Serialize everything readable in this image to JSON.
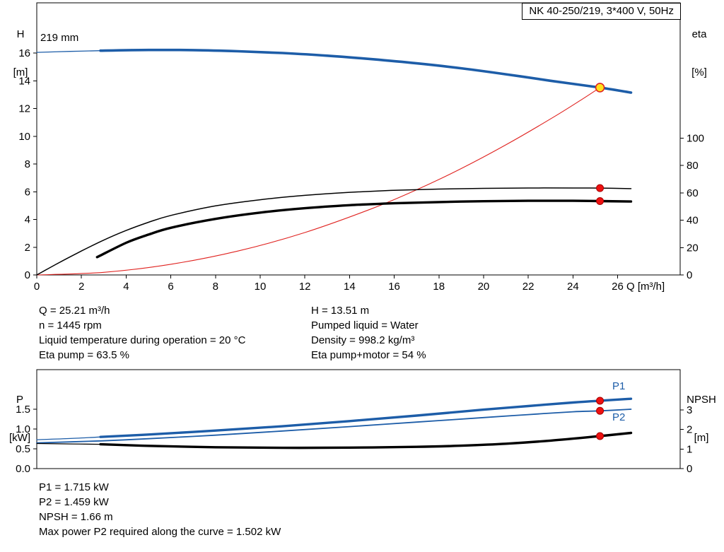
{
  "info_block": {
    "left": [
      "Q = 25.21 m³/h",
      "n = 1445 rpm",
      "Liquid temperature during operation = 20 °C",
      "Eta pump = 63.5 %"
    ],
    "right": [
      "H = 13.51 m",
      "Pumped liquid = Water",
      "Density = 998.2 kg/m³",
      "Eta pump+motor = 54 %"
    ]
  },
  "result_block": {
    "lines": [
      "P1 = 1.715 kW",
      "P2 = 1.459 kW",
      "NPSH = 1.66 m",
      "Max power P2 required along the curve = 1.502 kW"
    ]
  },
  "chart_data": [
    {
      "type": "line",
      "title": "NK 40-250/219, 3*400 V, 50Hz",
      "impeller_label": "219 mm",
      "x_axis": {
        "label": "Q [m³/h]",
        "lim": [
          0,
          28.8
        ],
        "ticks": [
          0,
          2,
          4,
          6,
          8,
          10,
          12,
          14,
          16,
          18,
          20,
          22,
          24,
          26
        ]
      },
      "y_left": {
        "symbol": "H",
        "unit": "[m]",
        "lim": [
          0,
          19.62
        ],
        "ticks": [
          0,
          2,
          4,
          6,
          8,
          10,
          12,
          14,
          16
        ]
      },
      "y_right": {
        "symbol": "eta",
        "unit": "[%]",
        "lim": [
          0,
          199
        ],
        "ticks": [
          0,
          20,
          40,
          60,
          80,
          100
        ]
      },
      "series": [
        {
          "name": "head-curve-lead",
          "axis": "left",
          "color": "#1d5da8",
          "width": 1.3,
          "points": [
            [
              0,
              16.05
            ],
            [
              1.5,
              16.12
            ],
            [
              2.85,
              16.17
            ]
          ]
        },
        {
          "name": "head-curve",
          "axis": "left",
          "color": "#1d5da8",
          "width": 3.6,
          "points": [
            [
              2.85,
              16.17
            ],
            [
              5,
              16.22
            ],
            [
              7,
              16.21
            ],
            [
              9,
              16.13
            ],
            [
              11,
              16.0
            ],
            [
              13,
              15.81
            ],
            [
              15,
              15.56
            ],
            [
              17,
              15.26
            ],
            [
              19,
              14.9
            ],
            [
              21,
              14.47
            ],
            [
              23,
              14.0
            ],
            [
              25.21,
              13.51
            ],
            [
              26.6,
              13.15
            ]
          ]
        },
        {
          "name": "system-curve",
          "axis": "left",
          "color": "#e02320",
          "width": 1.1,
          "points": [
            [
              0,
              0
            ],
            [
              3,
              0.19
            ],
            [
              6,
              0.77
            ],
            [
              9,
              1.72
            ],
            [
              12,
              3.06
            ],
            [
              15,
              4.78
            ],
            [
              17,
              6.14
            ],
            [
              19,
              7.67
            ],
            [
              21,
              9.38
            ],
            [
              23,
              11.25
            ],
            [
              24.3,
              12.55
            ],
            [
              25.21,
              13.51
            ]
          ]
        },
        {
          "name": "eta-pump-curve",
          "axis": "right",
          "color": "#000000",
          "width": 1.5,
          "points": [
            [
              0,
              0
            ],
            [
              1,
              9
            ],
            [
              2,
              17.5
            ],
            [
              3,
              25.5
            ],
            [
              4,
              32.5
            ],
            [
              5,
              38.5
            ],
            [
              6,
              43.5
            ],
            [
              8,
              50.5
            ],
            [
              10,
              55
            ],
            [
              12,
              58.2
            ],
            [
              14,
              60.4
            ],
            [
              16,
              61.9
            ],
            [
              18,
              62.8
            ],
            [
              20,
              63.3
            ],
            [
              22,
              63.6
            ],
            [
              24,
              63.6
            ],
            [
              25.21,
              63.5
            ],
            [
              26.6,
              63.1
            ]
          ]
        },
        {
          "name": "eta-pump-motor-curve",
          "axis": "right",
          "color": "#000000",
          "width": 3.4,
          "points": [
            [
              2.7,
              13
            ],
            [
              4,
              23.5
            ],
            [
              5,
              29.5
            ],
            [
              6,
              34.5
            ],
            [
              8,
              41
            ],
            [
              10,
              45.6
            ],
            [
              12,
              48.8
            ],
            [
              14,
              51
            ],
            [
              16,
              52.4
            ],
            [
              18,
              53.3
            ],
            [
              20,
              53.9
            ],
            [
              22,
              54.2
            ],
            [
              24,
              54.2
            ],
            [
              25.21,
              54
            ],
            [
              26.6,
              53.7
            ]
          ]
        }
      ],
      "markers": [
        {
          "name": "duty-point",
          "x": 25.21,
          "axis": "left",
          "y": 13.51,
          "r": 6,
          "fill": "#ffe11c",
          "stroke": "#e02320",
          "sw": 1.6
        },
        {
          "name": "eta-pump-point",
          "x": 25.21,
          "axis": "right",
          "y": 63.5,
          "r": 5,
          "fill": "#ee1111",
          "stroke": "#a50000",
          "sw": 1
        },
        {
          "name": "eta-pump-motor-point",
          "x": 25.21,
          "axis": "right",
          "y": 54,
          "r": 5,
          "fill": "#ee1111",
          "stroke": "#a50000",
          "sw": 1
        }
      ]
    },
    {
      "type": "line",
      "x_axis": {
        "label": "",
        "lim": [
          0,
          28.8
        ],
        "ticks": []
      },
      "y_left": {
        "symbol": "P",
        "unit": "[kW]",
        "lim": [
          0,
          2.5
        ],
        "ticks": [
          0,
          0.5,
          1,
          1.5
        ],
        "tick_labels": [
          "0.0",
          "0.5",
          "1.0",
          "1.5"
        ]
      },
      "y_right": {
        "symbol": "NPSH",
        "unit": "[m]",
        "lim": [
          0,
          5.05
        ],
        "ticks": [
          0,
          1,
          2,
          3
        ]
      },
      "series_labels": {
        "p1": "P1",
        "p2": "P2"
      },
      "series": [
        {
          "name": "p1-curve-lead",
          "axis": "left",
          "color": "#1d5da8",
          "width": 1.3,
          "points": [
            [
              0,
              0.73
            ],
            [
              1.5,
              0.76
            ],
            [
              2.85,
              0.8
            ]
          ]
        },
        {
          "name": "p1-curve",
          "axis": "left",
          "color": "#1d5da8",
          "width": 3.4,
          "points": [
            [
              2.85,
              0.8
            ],
            [
              5,
              0.86
            ],
            [
              8,
              0.96
            ],
            [
              11,
              1.07
            ],
            [
              14,
              1.2
            ],
            [
              17,
              1.34
            ],
            [
              20,
              1.49
            ],
            [
              22,
              1.58
            ],
            [
              24,
              1.67
            ],
            [
              25.21,
              1.715
            ],
            [
              26.6,
              1.765
            ]
          ]
        },
        {
          "name": "p2-curve",
          "axis": "left",
          "color": "#1d5da8",
          "width": 1.8,
          "points": [
            [
              0,
              0.65
            ],
            [
              2.85,
              0.7
            ],
            [
              5,
              0.755
            ],
            [
              8,
              0.845
            ],
            [
              11,
              0.95
            ],
            [
              14,
              1.06
            ],
            [
              17,
              1.175
            ],
            [
              20,
              1.29
            ],
            [
              22,
              1.365
            ],
            [
              24,
              1.435
            ],
            [
              25.21,
              1.459
            ],
            [
              26.6,
              1.5
            ]
          ]
        },
        {
          "name": "npsh-curve-lead",
          "axis": "right",
          "color": "#000000",
          "width": 1.3,
          "points": [
            [
              0,
              1.28
            ],
            [
              1.5,
              1.26
            ],
            [
              2.85,
              1.24
            ]
          ]
        },
        {
          "name": "npsh-curve",
          "axis": "right",
          "color": "#000000",
          "width": 3.4,
          "points": [
            [
              2.85,
              1.24
            ],
            [
              5,
              1.16
            ],
            [
              8,
              1.09
            ],
            [
              11,
              1.06
            ],
            [
              14,
              1.07
            ],
            [
              17,
              1.11
            ],
            [
              19,
              1.17
            ],
            [
              21,
              1.27
            ],
            [
              23,
              1.43
            ],
            [
              25.21,
              1.66
            ],
            [
              26.6,
              1.82
            ]
          ]
        }
      ],
      "markers": [
        {
          "name": "p1-point",
          "x": 25.21,
          "axis": "left",
          "y": 1.715,
          "r": 5,
          "fill": "#ee1111",
          "stroke": "#a50000",
          "sw": 1
        },
        {
          "name": "p2-point",
          "x": 25.21,
          "axis": "left",
          "y": 1.459,
          "r": 5,
          "fill": "#ee1111",
          "stroke": "#a50000",
          "sw": 1
        },
        {
          "name": "npsh-point",
          "x": 25.21,
          "axis": "right",
          "y": 1.66,
          "r": 5,
          "fill": "#ee1111",
          "stroke": "#a50000",
          "sw": 1
        }
      ]
    }
  ]
}
